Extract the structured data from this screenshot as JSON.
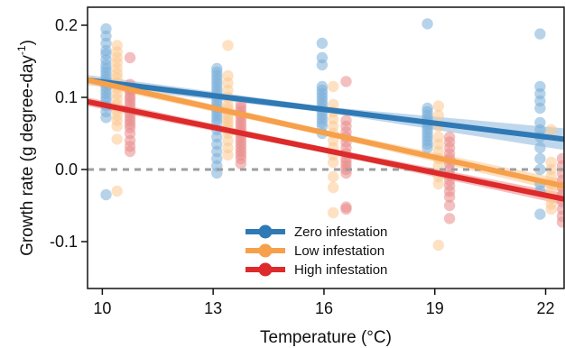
{
  "chart_data": {
    "type": "scatter",
    "xlabel": "Temperature (°C)",
    "ylabel_main": "Growth rate (g degree-day",
    "ylabel_sup": "-1",
    "ylabel_close": ")",
    "xlim": [
      9.6,
      22.5
    ],
    "ylim": [
      -0.165,
      0.225
    ],
    "xticks": [
      10,
      13,
      16,
      19,
      22
    ],
    "xtick_labels": [
      "10",
      "13",
      "16",
      "19",
      "22"
    ],
    "yticks": [
      0.2,
      0.1,
      0.0,
      -0.1
    ],
    "ytick_labels": [
      "0.2",
      "0.1",
      "0.0",
      "-0.1"
    ],
    "reference_line": {
      "y": 0.0,
      "style": "dashed",
      "color": "#9e9e9e"
    },
    "legend_position": "bottom-center",
    "series": [
      {
        "name": "Zero infestation",
        "color": "#2f79b5",
        "point_color": "#7aaed8",
        "band_color": "#a9c9e6",
        "fit": {
          "x": [
            9.6,
            22.5
          ],
          "y": [
            0.124,
            0.042
          ]
        },
        "band_halfwidth": [
          0.007,
          0.004,
          0.015
        ],
        "points": [
          [
            10.1,
            0.195
          ],
          [
            10.1,
            0.185
          ],
          [
            10.1,
            0.175
          ],
          [
            10.1,
            0.165
          ],
          [
            10.1,
            0.16
          ],
          [
            10.1,
            0.152
          ],
          [
            10.1,
            0.145
          ],
          [
            10.1,
            0.14
          ],
          [
            10.1,
            0.135
          ],
          [
            10.1,
            0.13
          ],
          [
            10.1,
            0.125
          ],
          [
            10.1,
            0.12
          ],
          [
            10.1,
            0.115
          ],
          [
            10.1,
            0.11
          ],
          [
            10.1,
            0.105
          ],
          [
            10.1,
            0.1
          ],
          [
            10.1,
            0.095
          ],
          [
            10.1,
            0.088
          ],
          [
            10.1,
            0.08
          ],
          [
            10.1,
            0.072
          ],
          [
            10.1,
            -0.035
          ],
          [
            13.1,
            0.14
          ],
          [
            13.1,
            0.135
          ],
          [
            13.1,
            0.13
          ],
          [
            13.1,
            0.125
          ],
          [
            13.1,
            0.12
          ],
          [
            13.1,
            0.115
          ],
          [
            13.1,
            0.11
          ],
          [
            13.1,
            0.105
          ],
          [
            13.1,
            0.1
          ],
          [
            13.1,
            0.095
          ],
          [
            13.1,
            0.09
          ],
          [
            13.1,
            0.085
          ],
          [
            13.1,
            0.08
          ],
          [
            13.1,
            0.075
          ],
          [
            13.1,
            0.07
          ],
          [
            13.1,
            0.065
          ],
          [
            13.1,
            0.055
          ],
          [
            13.1,
            0.045
          ],
          [
            13.1,
            0.035
          ],
          [
            13.1,
            0.025
          ],
          [
            13.1,
            0.015
          ],
          [
            13.1,
            0.005
          ],
          [
            13.1,
            -0.005
          ],
          [
            15.95,
            0.175
          ],
          [
            15.95,
            0.155
          ],
          [
            15.95,
            0.145
          ],
          [
            15.95,
            0.115
          ],
          [
            15.95,
            0.11
          ],
          [
            15.95,
            0.105
          ],
          [
            15.95,
            0.1
          ],
          [
            15.95,
            0.095
          ],
          [
            15.95,
            0.09
          ],
          [
            15.95,
            0.085
          ],
          [
            15.95,
            0.08
          ],
          [
            15.95,
            0.075
          ],
          [
            15.95,
            0.07
          ],
          [
            15.95,
            0.065
          ],
          [
            15.95,
            0.06
          ],
          [
            15.95,
            0.05
          ],
          [
            18.8,
            0.202
          ],
          [
            18.8,
            0.085
          ],
          [
            18.8,
            0.08
          ],
          [
            18.8,
            0.075
          ],
          [
            18.8,
            0.07
          ],
          [
            18.8,
            0.065
          ],
          [
            18.8,
            0.06
          ],
          [
            18.8,
            0.055
          ],
          [
            18.8,
            0.05
          ],
          [
            18.8,
            0.045
          ],
          [
            18.8,
            0.04
          ],
          [
            18.8,
            0.035
          ],
          [
            18.8,
            0.03
          ],
          [
            21.85,
            0.188
          ],
          [
            21.85,
            0.115
          ],
          [
            21.85,
            0.105
          ],
          [
            21.85,
            0.095
          ],
          [
            21.85,
            0.085
          ],
          [
            21.85,
            0.065
          ],
          [
            21.85,
            0.055
          ],
          [
            21.85,
            0.045
          ],
          [
            21.85,
            0.03
          ],
          [
            21.85,
            0.015
          ],
          [
            21.85,
            0.0
          ],
          [
            21.85,
            -0.02
          ],
          [
            21.85,
            -0.03
          ],
          [
            21.85,
            -0.062
          ]
        ]
      },
      {
        "name": "Low infestation",
        "color": "#f7a04b",
        "point_color": "#fbc990",
        "band_color": "#fcd7ad",
        "fit": {
          "x": [
            9.6,
            22.5
          ],
          "y": [
            0.124,
            -0.023
          ]
        },
        "band_halfwidth": [
          0.006,
          0.004,
          0.009
        ],
        "points": [
          [
            10.4,
            0.172
          ],
          [
            10.4,
            0.163
          ],
          [
            10.4,
            0.155
          ],
          [
            10.4,
            0.148
          ],
          [
            10.4,
            0.14
          ],
          [
            10.4,
            0.133
          ],
          [
            10.4,
            0.127
          ],
          [
            10.4,
            0.12
          ],
          [
            10.4,
            0.113
          ],
          [
            10.4,
            0.105
          ],
          [
            10.4,
            0.098
          ],
          [
            10.4,
            0.09
          ],
          [
            10.4,
            0.082
          ],
          [
            10.4,
            0.075
          ],
          [
            10.4,
            0.068
          ],
          [
            10.4,
            0.06
          ],
          [
            10.4,
            0.042
          ],
          [
            10.4,
            -0.03
          ],
          [
            13.4,
            0.172
          ],
          [
            13.4,
            0.13
          ],
          [
            13.4,
            0.12
          ],
          [
            13.4,
            0.11
          ],
          [
            13.4,
            0.1
          ],
          [
            13.4,
            0.09
          ],
          [
            13.4,
            0.085
          ],
          [
            13.4,
            0.08
          ],
          [
            13.4,
            0.075
          ],
          [
            13.4,
            0.07
          ],
          [
            13.4,
            0.065
          ],
          [
            13.4,
            0.06
          ],
          [
            13.4,
            0.055
          ],
          [
            13.4,
            0.05
          ],
          [
            13.4,
            0.04
          ],
          [
            13.4,
            0.03
          ],
          [
            13.4,
            0.02
          ],
          [
            16.25,
            0.115
          ],
          [
            16.25,
            0.09
          ],
          [
            16.25,
            0.08
          ],
          [
            16.25,
            0.07
          ],
          [
            16.25,
            0.06
          ],
          [
            16.25,
            0.05
          ],
          [
            16.25,
            0.04
          ],
          [
            16.25,
            0.03
          ],
          [
            16.25,
            0.02
          ],
          [
            16.25,
            0.01
          ],
          [
            16.25,
            -0.01
          ],
          [
            16.25,
            -0.025
          ],
          [
            16.25,
            -0.06
          ],
          [
            19.1,
            0.088
          ],
          [
            19.1,
            0.075
          ],
          [
            19.1,
            0.06
          ],
          [
            19.1,
            0.045
          ],
          [
            19.1,
            0.035
          ],
          [
            19.1,
            0.025
          ],
          [
            19.1,
            0.015
          ],
          [
            19.1,
            0.005
          ],
          [
            19.1,
            -0.01
          ],
          [
            19.1,
            -0.02
          ],
          [
            19.1,
            -0.105
          ],
          [
            22.15,
            0.055
          ],
          [
            22.15,
            0.01
          ],
          [
            22.15,
            0.0
          ],
          [
            22.15,
            -0.01
          ],
          [
            22.15,
            -0.02
          ],
          [
            22.15,
            -0.03
          ],
          [
            22.15,
            -0.04
          ],
          [
            22.15,
            -0.048
          ],
          [
            22.15,
            -0.055
          ]
        ]
      },
      {
        "name": "High infestation",
        "color": "#dd2a2a",
        "point_color": "#ea8a8a",
        "band_color": "#f2a8a8",
        "fit": {
          "x": [
            9.6,
            22.5
          ],
          "y": [
            0.094,
            -0.041
          ]
        },
        "band_halfwidth": [
          0.006,
          0.004,
          0.008
        ],
        "points": [
          [
            10.75,
            0.155
          ],
          [
            10.75,
            0.118
          ],
          [
            10.75,
            0.112
          ],
          [
            10.75,
            0.108
          ],
          [
            10.75,
            0.102
          ],
          [
            10.75,
            0.098
          ],
          [
            10.75,
            0.093
          ],
          [
            10.75,
            0.088
          ],
          [
            10.75,
            0.083
          ],
          [
            10.75,
            0.078
          ],
          [
            10.75,
            0.073
          ],
          [
            10.75,
            0.068
          ],
          [
            10.75,
            0.063
          ],
          [
            10.75,
            0.058
          ],
          [
            10.75,
            0.05
          ],
          [
            10.75,
            0.04
          ],
          [
            10.75,
            0.032
          ],
          [
            10.75,
            0.025
          ],
          [
            13.75,
            0.09
          ],
          [
            13.75,
            0.085
          ],
          [
            13.75,
            0.08
          ],
          [
            13.75,
            0.075
          ],
          [
            13.75,
            0.07
          ],
          [
            13.75,
            0.065
          ],
          [
            13.75,
            0.06
          ],
          [
            13.75,
            0.055
          ],
          [
            13.75,
            0.05
          ],
          [
            13.75,
            0.045
          ],
          [
            13.75,
            0.04
          ],
          [
            13.75,
            0.035
          ],
          [
            13.75,
            0.03
          ],
          [
            13.75,
            0.025
          ],
          [
            13.75,
            0.02
          ],
          [
            13.75,
            0.015
          ],
          [
            13.75,
            0.008
          ],
          [
            16.6,
            0.122
          ],
          [
            16.6,
            0.068
          ],
          [
            16.6,
            0.06
          ],
          [
            16.6,
            0.052
          ],
          [
            16.6,
            0.045
          ],
          [
            16.6,
            0.038
          ],
          [
            16.6,
            0.03
          ],
          [
            16.6,
            0.022
          ],
          [
            16.6,
            0.015
          ],
          [
            16.6,
            0.01
          ],
          [
            16.6,
            0.005
          ],
          [
            16.6,
            0.0
          ],
          [
            16.6,
            -0.005
          ],
          [
            16.6,
            -0.052
          ],
          [
            16.6,
            -0.055
          ],
          [
            19.4,
            0.045
          ],
          [
            19.4,
            0.038
          ],
          [
            19.4,
            0.03
          ],
          [
            19.4,
            0.022
          ],
          [
            19.4,
            0.015
          ],
          [
            19.4,
            0.008
          ],
          [
            19.4,
            0.0
          ],
          [
            19.4,
            -0.008
          ],
          [
            19.4,
            -0.015
          ],
          [
            19.4,
            -0.022
          ],
          [
            19.4,
            -0.03
          ],
          [
            19.4,
            -0.038
          ],
          [
            19.4,
            -0.05
          ],
          [
            19.4,
            -0.068
          ],
          [
            22.45,
            0.015
          ],
          [
            22.45,
            0.005
          ],
          [
            22.45,
            -0.005
          ],
          [
            22.45,
            -0.015
          ],
          [
            22.45,
            -0.025
          ],
          [
            22.45,
            -0.035
          ],
          [
            22.45,
            -0.045
          ],
          [
            22.45,
            -0.055
          ],
          [
            22.45,
            -0.065
          ],
          [
            22.45,
            -0.073
          ]
        ]
      }
    ]
  }
}
